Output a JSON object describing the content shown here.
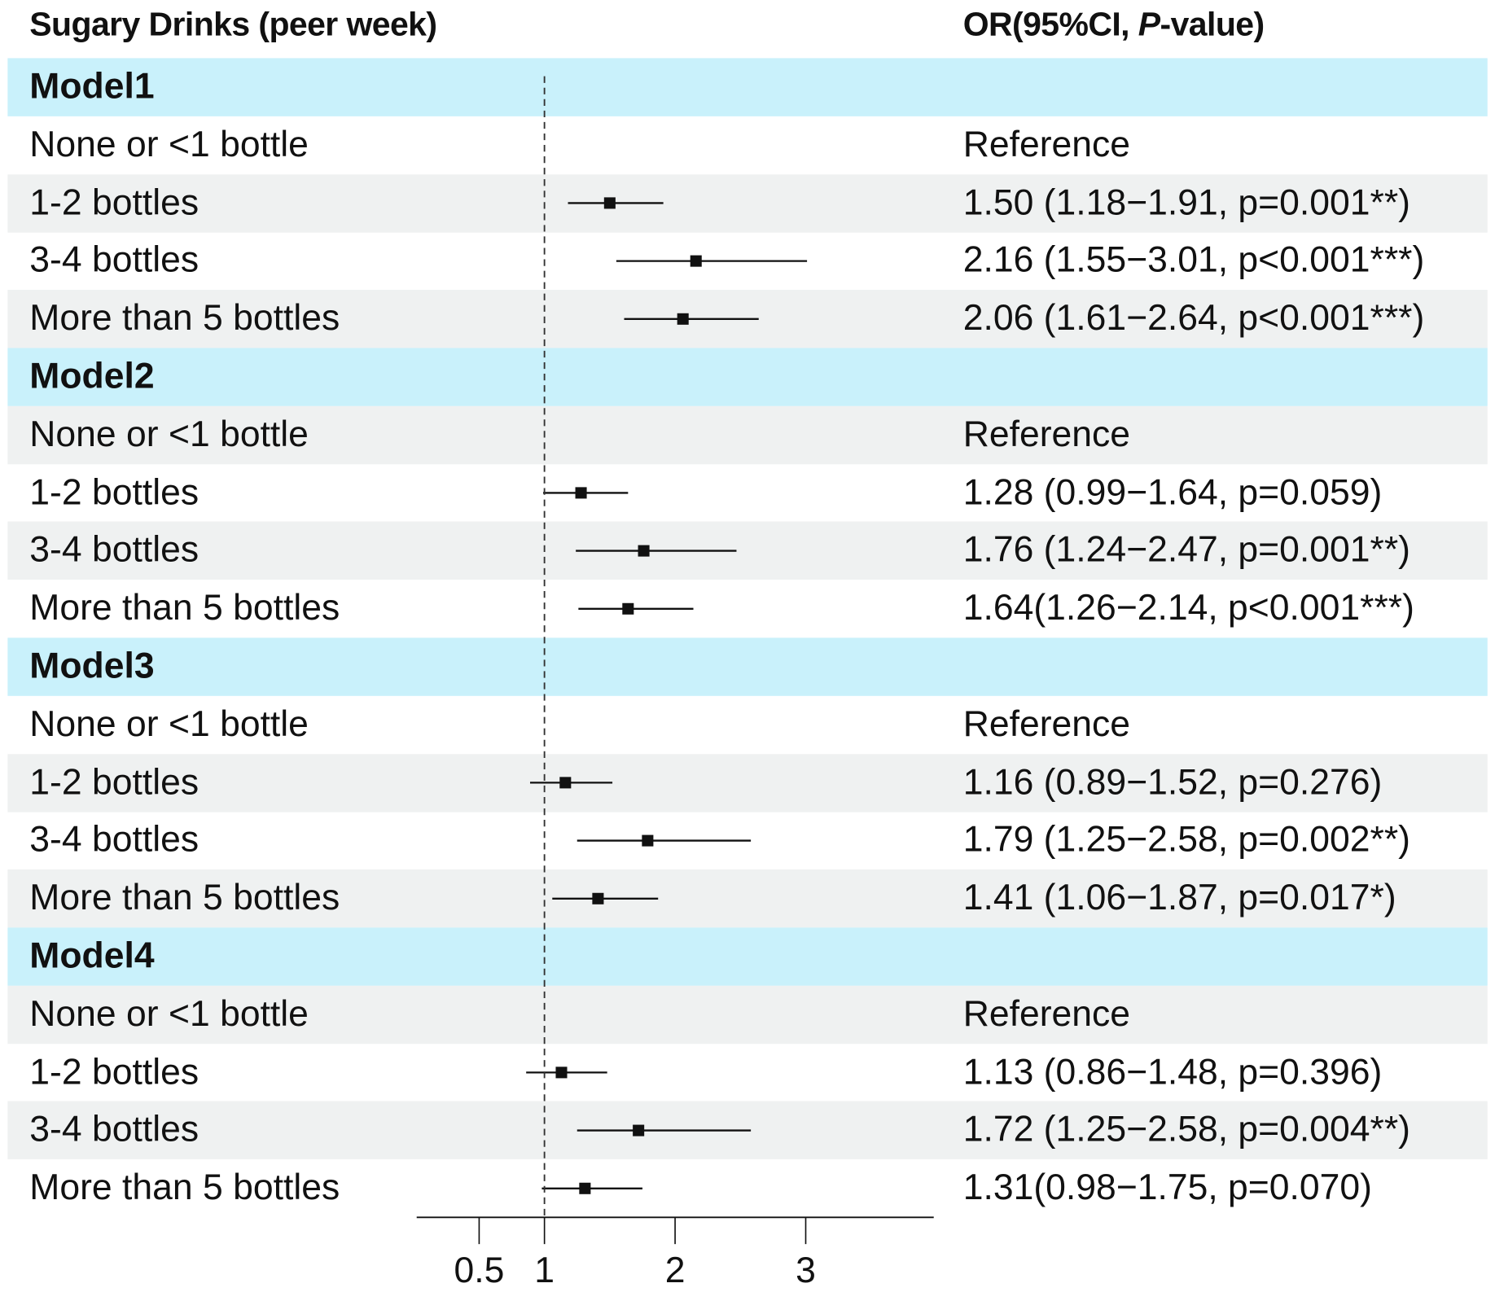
{
  "chart_data": {
    "type": "forest",
    "left_header": "Sugary Drinks (peer week)",
    "right_header_prefix": "OR(95%CI, ",
    "right_header_italic": "P",
    "right_header_suffix": "-value)",
    "reference_line": 1,
    "xlim": [
      0,
      3.98
    ],
    "xticks": [
      0.5,
      1,
      2,
      3
    ],
    "xtick_labels": [
      "0.5",
      "1",
      "2",
      "3"
    ],
    "colors": {
      "model_band": "#c9f1fb",
      "alt_row": "#eff1f1",
      "marker": "#111111"
    },
    "groups": [
      {
        "name": "Model1",
        "rows": [
          {
            "label": "None or <1 bottle",
            "text": "Reference"
          },
          {
            "label": "1-2 bottles",
            "or": 1.5,
            "lo": 1.18,
            "hi": 1.91,
            "text": "1.50 (1.18−1.91, p=0.001**)"
          },
          {
            "label": "3-4 bottles",
            "or": 2.16,
            "lo": 1.55,
            "hi": 3.01,
            "text": "2.16 (1.55−3.01, p<0.001***)"
          },
          {
            "label": "More than 5 bottles",
            "or": 2.06,
            "lo": 1.61,
            "hi": 2.64,
            "text": "2.06 (1.61−2.64, p<0.001***)"
          }
        ]
      },
      {
        "name": "Model2",
        "rows": [
          {
            "label": "None or <1 bottle",
            "text": "Reference"
          },
          {
            "label": "1-2 bottles",
            "or": 1.28,
            "lo": 0.99,
            "hi": 1.64,
            "text": "1.28 (0.99−1.64, p=0.059)"
          },
          {
            "label": "3-4 bottles",
            "or": 1.76,
            "lo": 1.24,
            "hi": 2.47,
            "text": "1.76 (1.24−2.47, p=0.001**)"
          },
          {
            "label": "More than 5 bottles",
            "or": 1.64,
            "lo": 1.26,
            "hi": 2.14,
            "text": "1.64(1.26−2.14, p<0.001***)"
          }
        ]
      },
      {
        "name": "Model3",
        "rows": [
          {
            "label": "None or <1 bottle",
            "text": "Reference"
          },
          {
            "label": "1-2 bottles",
            "or": 1.16,
            "lo": 0.89,
            "hi": 1.52,
            "text": "1.16 (0.89−1.52, p=0.276)"
          },
          {
            "label": "3-4 bottles",
            "or": 1.79,
            "lo": 1.25,
            "hi": 2.58,
            "text": "1.79 (1.25−2.58, p=0.002**)"
          },
          {
            "label": "More than 5 bottles",
            "or": 1.41,
            "lo": 1.06,
            "hi": 1.87,
            "text": "1.41 (1.06−1.87, p=0.017*)"
          }
        ]
      },
      {
        "name": "Model4",
        "rows": [
          {
            "label": "None or <1 bottle",
            "text": "Reference"
          },
          {
            "label": "1-2 bottles",
            "or": 1.13,
            "lo": 0.86,
            "hi": 1.48,
            "text": "1.13 (0.86−1.48, p=0.396)"
          },
          {
            "label": "3-4 bottles",
            "or": 1.72,
            "lo": 1.25,
            "hi": 2.58,
            "text": "1.72 (1.25−2.58, p=0.004**)"
          },
          {
            "label": "More than 5 bottles",
            "or": 1.31,
            "lo": 0.98,
            "hi": 1.75,
            "text": "1.31(0.98−1.75, p=0.070)"
          }
        ]
      }
    ]
  }
}
